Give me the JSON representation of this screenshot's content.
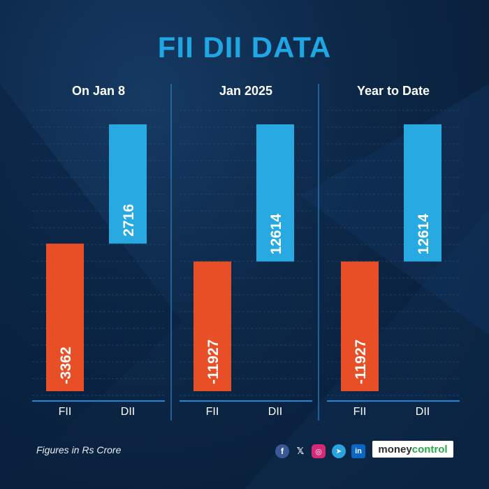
{
  "title": "FII DII DATA",
  "footnote": "Figures in Rs Crore",
  "colors": {
    "fii": "#e84f27",
    "dii": "#29a9e1",
    "title": "#1ea7e4"
  },
  "social_icons": [
    "facebook-icon",
    "x-icon",
    "instagram-icon",
    "telegram-icon",
    "linkedin-icon"
  ],
  "social_glyphs": {
    "facebook": "f",
    "x": "𝕏",
    "instagram": "◎",
    "telegram": "➤",
    "linkedin": "in"
  },
  "brand": {
    "part1": "money",
    "part2": "control"
  },
  "chart_data": [
    {
      "type": "bar",
      "title": "On Jan 8",
      "categories": [
        "FII",
        "DII"
      ],
      "values": [
        -3362,
        2716
      ]
    },
    {
      "type": "bar",
      "title": "Jan 2025",
      "categories": [
        "FII",
        "DII"
      ],
      "values": [
        -11927,
        12614
      ]
    },
    {
      "type": "bar",
      "title": "Year to Date",
      "categories": [
        "FII",
        "DII"
      ],
      "values": [
        -11927,
        12614
      ]
    }
  ]
}
